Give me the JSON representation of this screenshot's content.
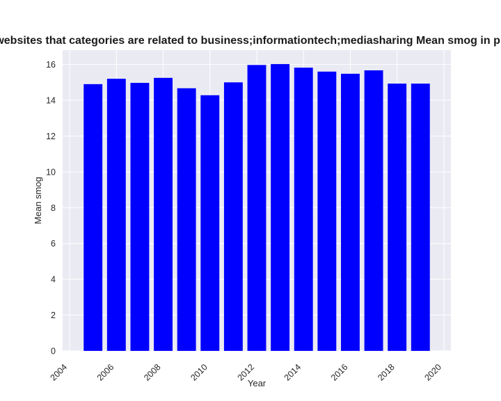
{
  "chart_data": {
    "type": "bar",
    "title": "Number of websites that categories are related to business;informationtech;mediasharing Mean smog in privacy policies",
    "xlabel": "Year",
    "ylabel": "Mean smog",
    "x": [
      2005,
      2006,
      2007,
      2008,
      2009,
      2010,
      2011,
      2012,
      2013,
      2014,
      2015,
      2016,
      2017,
      2018,
      2019
    ],
    "values": [
      14.9,
      15.2,
      14.97,
      15.25,
      14.67,
      14.28,
      15.0,
      15.97,
      16.02,
      15.82,
      15.6,
      15.48,
      15.67,
      14.93,
      14.93
    ],
    "xlim": [
      2003.7,
      2020.3
    ],
    "ylim": [
      0,
      16.8
    ],
    "xticks": [
      2004,
      2006,
      2008,
      2010,
      2012,
      2014,
      2016,
      2018,
      2020
    ],
    "yticks": [
      0,
      2,
      4,
      6,
      8,
      10,
      12,
      14,
      16
    ],
    "bar_color": "#0000ff",
    "plot_background": "#eaeaf2",
    "grid": true,
    "legend": false
  }
}
